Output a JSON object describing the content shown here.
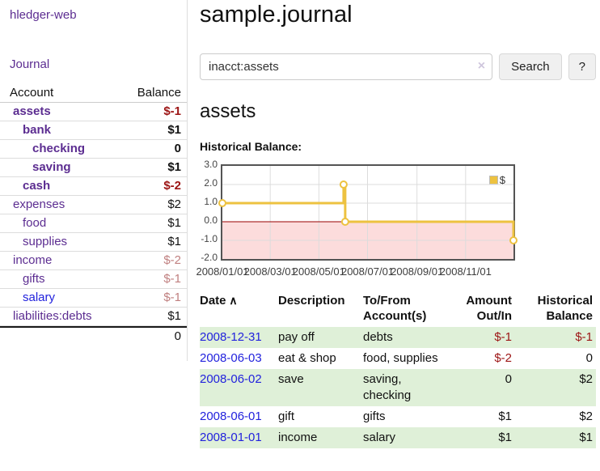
{
  "sidebar": {
    "brand": "hledger-web",
    "nav": {
      "journal": "Journal"
    },
    "table": {
      "headers": {
        "account": "Account",
        "balance": "Balance"
      },
      "rows": [
        {
          "label": "assets",
          "balance": "$-1",
          "level": 0,
          "bold": true,
          "balance_class": "neg"
        },
        {
          "label": "bank",
          "balance": "$1",
          "level": 1,
          "bold": true,
          "balance_class": ""
        },
        {
          "label": "checking",
          "balance": "0",
          "level": 2,
          "bold": true,
          "balance_class": ""
        },
        {
          "label": "saving",
          "balance": "$1",
          "level": 2,
          "bold": true,
          "balance_class": ""
        },
        {
          "label": "cash",
          "balance": "$-2",
          "level": 1,
          "bold": true,
          "balance_class": "neg"
        },
        {
          "label": "expenses",
          "balance": "$2",
          "level": 0,
          "bold": false,
          "balance_class": ""
        },
        {
          "label": "food",
          "balance": "$1",
          "level": 1,
          "bold": false,
          "balance_class": ""
        },
        {
          "label": "supplies",
          "balance": "$1",
          "level": 1,
          "bold": false,
          "balance_class": ""
        },
        {
          "label": "income",
          "balance": "$-2",
          "level": 0,
          "bold": false,
          "balance_class": "neg-muted"
        },
        {
          "label": "gifts",
          "balance": "$-1",
          "level": 1,
          "bold": false,
          "balance_class": "neg-muted"
        },
        {
          "label": "salary",
          "balance": "$-1",
          "level": 1,
          "bold": false,
          "balance_class": "neg-muted",
          "link_class": "blue"
        },
        {
          "label": "liabilities:debts",
          "balance": "$1",
          "level": 0,
          "bold": false,
          "balance_class": ""
        }
      ],
      "total": "0"
    }
  },
  "main": {
    "title": "sample.journal",
    "search": {
      "value": "inacct:assets",
      "clear_icon": "×",
      "button_label": "Search",
      "help_label": "?"
    },
    "account_heading": "assets",
    "chart_label": "Historical Balance:"
  },
  "chart_data": {
    "type": "line",
    "title": "Historical Balance",
    "step": true,
    "series": [
      {
        "name": "$",
        "color": "#edc240",
        "points": [
          {
            "date": "2008-01-01",
            "value": 1
          },
          {
            "date": "2008-06-01",
            "value": 2
          },
          {
            "date": "2008-06-03",
            "value": 0
          },
          {
            "date": "2008-12-31",
            "value": -1
          }
        ]
      }
    ],
    "x_start": "2008-01-01",
    "x_end": "2008-12-31",
    "x_ticks": [
      "2008/01/01",
      "2008/03/01",
      "2008/05/01",
      "2008/07/01",
      "2008/09/01",
      "2008/11/01"
    ],
    "y_ticks": [
      3.0,
      2.0,
      1.0,
      0.0,
      -1.0,
      -2.0
    ],
    "ylim": [
      -2,
      3
    ],
    "grid": true,
    "legend_position": "top-right",
    "zero_line_color": "#990000",
    "negative_region_color": "#fcdcdc",
    "grid_color": "#dcdcdc"
  },
  "register": {
    "headers": [
      {
        "label": "Date",
        "sort": "∧",
        "align": "l"
      },
      {
        "label": "Description",
        "align": "l"
      },
      {
        "label": "To/From\nAccount(s)",
        "align": "l"
      },
      {
        "label": "Amount\nOut/In",
        "align": "r"
      },
      {
        "label": "Historical\nBalance",
        "align": "r"
      }
    ],
    "rows": [
      {
        "date": "2008-12-31",
        "description": "pay off",
        "accounts": "debts",
        "amount": "$-1",
        "amount_class": "neg",
        "balance": "$-1",
        "balance_class": "neg"
      },
      {
        "date": "2008-06-03",
        "description": "eat & shop",
        "accounts": "food, supplies",
        "amount": "$-2",
        "amount_class": "neg",
        "balance": "0",
        "balance_class": ""
      },
      {
        "date": "2008-06-02",
        "description": "save",
        "accounts": "saving,\nchecking",
        "amount": "0",
        "amount_class": "",
        "balance": "$2",
        "balance_class": ""
      },
      {
        "date": "2008-06-01",
        "description": "gift",
        "accounts": "gifts",
        "amount": "$1",
        "amount_class": "",
        "balance": "$2",
        "balance_class": ""
      },
      {
        "date": "2008-01-01",
        "description": "income",
        "accounts": "salary",
        "amount": "$1",
        "amount_class": "",
        "balance": "$1",
        "balance_class": ""
      }
    ]
  }
}
